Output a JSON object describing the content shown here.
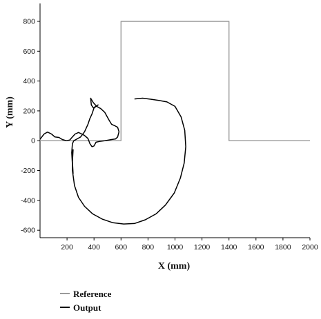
{
  "chart_data": {
    "type": "line",
    "xlabel": "X (mm)",
    "ylabel": "Y (mm)",
    "xlim": [
      0,
      2000
    ],
    "ylim": [
      -650,
      920
    ],
    "xticks": [
      200,
      400,
      600,
      800,
      1000,
      1200,
      1400,
      1600,
      1800,
      2000
    ],
    "yticks": [
      -600,
      -400,
      -200,
      0,
      200,
      400,
      600,
      800
    ],
    "grid": false,
    "legend_position": "bottom-left",
    "series": [
      {
        "name": "Reference",
        "color": "#9a9a9a",
        "points": [
          [
            0,
            0
          ],
          [
            600,
            0
          ],
          [
            600,
            800
          ],
          [
            1400,
            800
          ],
          [
            1400,
            0
          ],
          [
            2000,
            0
          ]
        ]
      },
      {
        "name": "Output",
        "color": "#000000",
        "points": [
          [
            0,
            10
          ],
          [
            30,
            45
          ],
          [
            55,
            58
          ],
          [
            85,
            45
          ],
          [
            110,
            25
          ],
          [
            140,
            22
          ],
          [
            165,
            8
          ],
          [
            195,
            0
          ],
          [
            220,
            5
          ],
          [
            240,
            25
          ],
          [
            260,
            45
          ],
          [
            285,
            55
          ],
          [
            310,
            45
          ],
          [
            330,
            35
          ],
          [
            355,
            15
          ],
          [
            370,
            -20
          ],
          [
            385,
            -40
          ],
          [
            400,
            -35
          ],
          [
            415,
            -10
          ],
          [
            440,
            -5
          ],
          [
            480,
            0
          ],
          [
            530,
            8
          ],
          [
            560,
            12
          ],
          [
            575,
            25
          ],
          [
            585,
            60
          ],
          [
            575,
            90
          ],
          [
            555,
            100
          ],
          [
            530,
            110
          ],
          [
            510,
            140
          ],
          [
            480,
            190
          ],
          [
            450,
            215
          ],
          [
            420,
            230
          ],
          [
            395,
            255
          ],
          [
            375,
            285
          ],
          [
            380,
            240
          ],
          [
            395,
            220
          ],
          [
            430,
            240
          ],
          [
            400,
            220
          ],
          [
            385,
            180
          ],
          [
            370,
            150
          ],
          [
            355,
            110
          ],
          [
            330,
            60
          ],
          [
            300,
            25
          ],
          [
            270,
            10
          ],
          [
            250,
            0
          ],
          [
            240,
            -20
          ],
          [
            235,
            -80
          ],
          [
            240,
            -160
          ],
          [
            245,
            -220
          ],
          [
            240,
            -140
          ],
          [
            245,
            -60
          ],
          [
            240,
            -100
          ],
          [
            240,
            -200
          ],
          [
            255,
            -300
          ],
          [
            285,
            -380
          ],
          [
            330,
            -440
          ],
          [
            390,
            -490
          ],
          [
            460,
            -525
          ],
          [
            540,
            -550
          ],
          [
            620,
            -558
          ],
          [
            700,
            -555
          ],
          [
            780,
            -530
          ],
          [
            860,
            -490
          ],
          [
            930,
            -430
          ],
          [
            995,
            -350
          ],
          [
            1040,
            -250
          ],
          [
            1068,
            -150
          ],
          [
            1080,
            -40
          ],
          [
            1072,
            70
          ],
          [
            1045,
            160
          ],
          [
            1000,
            230
          ],
          [
            940,
            260
          ],
          [
            880,
            270
          ],
          [
            820,
            278
          ],
          [
            760,
            285
          ],
          [
            700,
            280
          ]
        ]
      }
    ]
  }
}
